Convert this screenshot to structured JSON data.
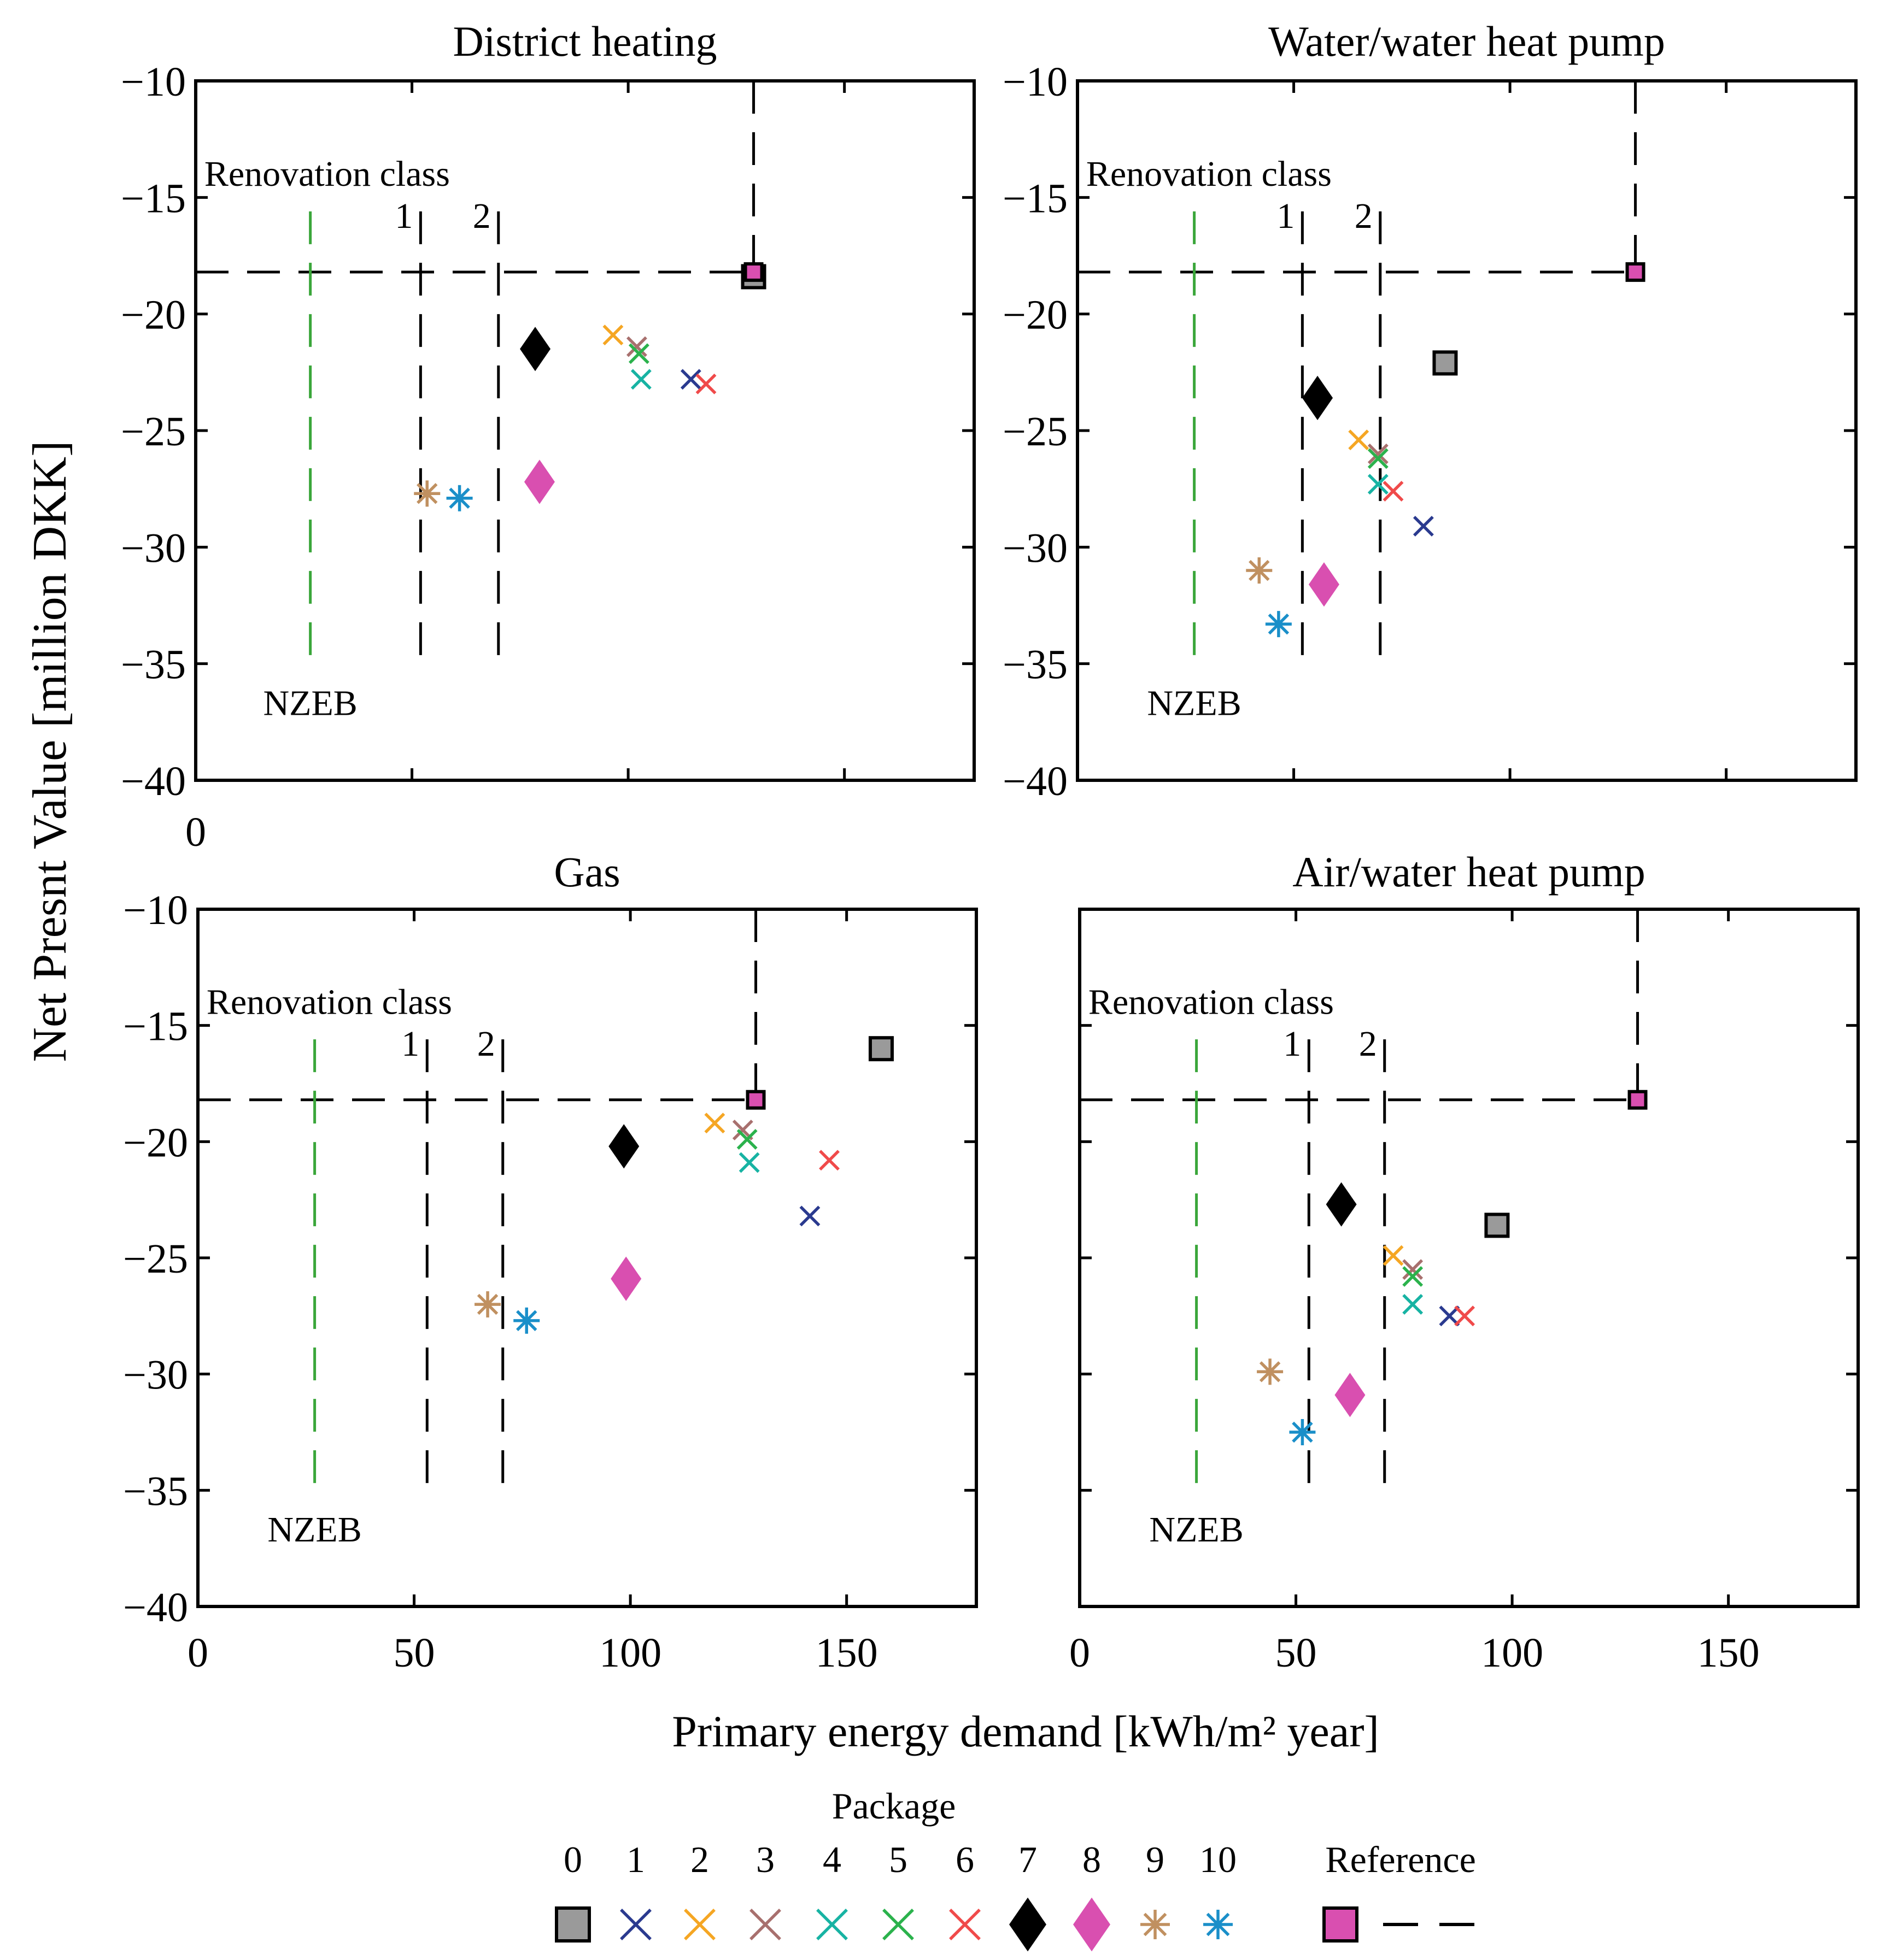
{
  "figure": {
    "ylabel": "Net Presnt Value  [million DKK]",
    "xlabel": "Primary energy demand [kWh/m² year]",
    "stray_zero": "0",
    "legend_title": "Package",
    "reference_label": "Reference"
  },
  "colors": {
    "p0": "#9a9a9a",
    "p1": "#2a3a8f",
    "p2": "#f5a623",
    "p3": "#a8706e",
    "p4": "#17b3a3",
    "p5": "#2bb24c",
    "p6": "#f04a4a",
    "p7": "#000000",
    "p8": "#d94fb0",
    "p9": "#c09060",
    "p10": "#1a8fc9",
    "nzeb_line": "#3aa63a",
    "reference": "#d94fb0"
  },
  "legend": {
    "packages": [
      {
        "label": "0",
        "marker": "square-icon"
      },
      {
        "label": "1",
        "marker": "x-icon"
      },
      {
        "label": "2",
        "marker": "x-icon"
      },
      {
        "label": "3",
        "marker": "x-icon"
      },
      {
        "label": "4",
        "marker": "x-icon"
      },
      {
        "label": "5",
        "marker": "x-icon"
      },
      {
        "label": "6",
        "marker": "x-icon"
      },
      {
        "label": "7",
        "marker": "diamond-icon"
      },
      {
        "label": "8",
        "marker": "diamond-icon"
      },
      {
        "label": "9",
        "marker": "asterisk-icon"
      },
      {
        "label": "10",
        "marker": "asterisk-icon"
      }
    ]
  },
  "chart_data": [
    {
      "type": "scatter",
      "title": "District heating",
      "xlim": [
        0,
        180
      ],
      "ylim": [
        -40,
        -10
      ],
      "xticks": [
        "0",
        "50",
        "100",
        "150"
      ],
      "yticks": [
        "−10",
        "−15",
        "−20",
        "−25",
        "−30",
        "−35",
        "−40"
      ],
      "reference": {
        "x": 129,
        "y": -18.2
      },
      "nzeb_x": 26.5,
      "class1_x": 52,
      "class2_x": 70,
      "renovation_label": "Renovation class",
      "class1_label": "1",
      "class2_label": "2",
      "nzeb_label": "NZEB",
      "points": [
        {
          "package": 0,
          "x": 129,
          "y": -18.4
        },
        {
          "package": 1,
          "x": 114.5,
          "y": -22.8
        },
        {
          "package": 2,
          "x": 96.5,
          "y": -20.9
        },
        {
          "package": 3,
          "x": 102,
          "y": -21.4
        },
        {
          "package": 4,
          "x": 103,
          "y": -22.8
        },
        {
          "package": 5,
          "x": 102.5,
          "y": -21.7
        },
        {
          "package": 6,
          "x": 118,
          "y": -23.0
        },
        {
          "package": 7,
          "x": 78.5,
          "y": -21.5
        },
        {
          "package": 8,
          "x": 79.5,
          "y": -27.2
        },
        {
          "package": 9,
          "x": 53.5,
          "y": -27.7
        },
        {
          "package": 10,
          "x": 61,
          "y": -27.9
        }
      ]
    },
    {
      "type": "scatter",
      "title": "Water/water heat pump",
      "xlim": [
        0,
        180
      ],
      "ylim": [
        -40,
        -10
      ],
      "xticks": [
        "0",
        "50",
        "100",
        "150"
      ],
      "yticks": [
        "−10",
        "−15",
        "−20",
        "−25",
        "−30",
        "−35",
        "−40"
      ],
      "reference": {
        "x": 129,
        "y": -18.2
      },
      "nzeb_x": 27,
      "class1_x": 52,
      "class2_x": 70,
      "renovation_label": "Renovation class",
      "class1_label": "1",
      "class2_label": "2",
      "nzeb_label": "NZEB",
      "points": [
        {
          "package": 0,
          "x": 85,
          "y": -22.1
        },
        {
          "package": 1,
          "x": 80,
          "y": -29.1
        },
        {
          "package": 2,
          "x": 65,
          "y": -25.4
        },
        {
          "package": 3,
          "x": 69.5,
          "y": -26.0
        },
        {
          "package": 4,
          "x": 69.5,
          "y": -27.3
        },
        {
          "package": 5,
          "x": 69.5,
          "y": -26.2
        },
        {
          "package": 6,
          "x": 73,
          "y": -27.6
        },
        {
          "package": 7,
          "x": 55.5,
          "y": -23.6
        },
        {
          "package": 8,
          "x": 57,
          "y": -31.6
        },
        {
          "package": 9,
          "x": 42,
          "y": -31.0
        },
        {
          "package": 10,
          "x": 46.5,
          "y": -33.3
        }
      ]
    },
    {
      "type": "scatter",
      "title": "Gas",
      "xlim": [
        0,
        180
      ],
      "ylim": [
        -40,
        -10
      ],
      "xticks": [
        "0",
        "50",
        "100",
        "150"
      ],
      "yticks": [
        "−10",
        "−15",
        "−20",
        "−25",
        "−30",
        "−35",
        "−40"
      ],
      "reference": {
        "x": 129,
        "y": -18.2
      },
      "nzeb_x": 27,
      "class1_x": 53,
      "class2_x": 70.5,
      "renovation_label": "Renovation class",
      "class1_label": "1",
      "class2_label": "2",
      "nzeb_label": "NZEB",
      "points": [
        {
          "package": 0,
          "x": 158,
          "y": -16.0
        },
        {
          "package": 1,
          "x": 141.5,
          "y": -23.2
        },
        {
          "package": 2,
          "x": 119.5,
          "y": -19.2
        },
        {
          "package": 3,
          "x": 126,
          "y": -19.5
        },
        {
          "package": 4,
          "x": 127.5,
          "y": -20.9
        },
        {
          "package": 5,
          "x": 127,
          "y": -19.9
        },
        {
          "package": 6,
          "x": 146,
          "y": -20.8
        },
        {
          "package": 7,
          "x": 98.5,
          "y": -20.2
        },
        {
          "package": 8,
          "x": 99,
          "y": -25.9
        },
        {
          "package": 9,
          "x": 67,
          "y": -27.0
        },
        {
          "package": 10,
          "x": 76,
          "y": -27.7
        }
      ]
    },
    {
      "type": "scatter",
      "title": "Air/water heat pump",
      "xlim": [
        0,
        180
      ],
      "ylim": [
        -40,
        -10
      ],
      "xticks": [
        "0",
        "50",
        "100",
        "150"
      ],
      "yticks": [],
      "reference": {
        "x": 129,
        "y": -18.2
      },
      "nzeb_x": 27,
      "class1_x": 53,
      "class2_x": 70.5,
      "renovation_label": "Renovation class",
      "class1_label": "1",
      "class2_label": "2",
      "nzeb_label": "NZEB",
      "points": [
        {
          "package": 0,
          "x": 96.5,
          "y": -23.6
        },
        {
          "package": 1,
          "x": 85.5,
          "y": -27.5
        },
        {
          "package": 2,
          "x": 72.5,
          "y": -24.9
        },
        {
          "package": 3,
          "x": 77,
          "y": -25.5
        },
        {
          "package": 4,
          "x": 77,
          "y": -27.0
        },
        {
          "package": 5,
          "x": 77,
          "y": -25.8
        },
        {
          "package": 6,
          "x": 89,
          "y": -27.5
        },
        {
          "package": 7,
          "x": 60.5,
          "y": -22.7
        },
        {
          "package": 8,
          "x": 62.5,
          "y": -30.9
        },
        {
          "package": 9,
          "x": 44,
          "y": -29.9
        },
        {
          "package": 10,
          "x": 51.5,
          "y": -32.5
        }
      ]
    }
  ]
}
